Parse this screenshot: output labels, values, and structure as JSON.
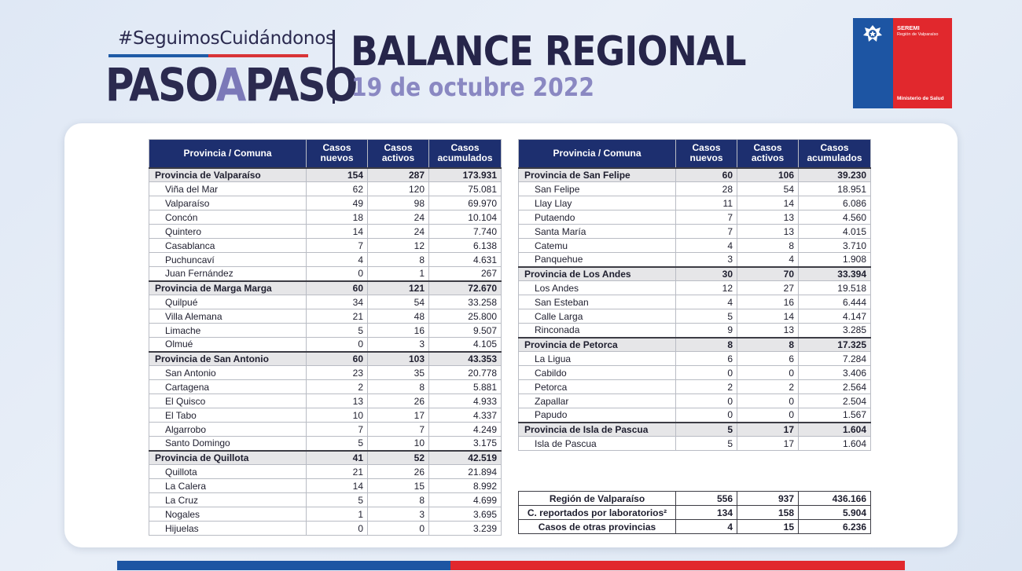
{
  "header": {
    "hashtag": "#SeguimosCuidándonos",
    "paso1": "PASO",
    "paso_a": "A",
    "paso2": "PASO",
    "title": "BALANCE REGIONAL",
    "date": "19 de octubre 2022"
  },
  "logo": {
    "seremi": "SEREMI",
    "region": "Región de Valparaíso",
    "ministerio": "Ministerio de Salud"
  },
  "columns": [
    "Provincia / Comuna",
    "Casos nuevos",
    "Casos activos",
    "Casos acumulados"
  ],
  "left_table": [
    {
      "type": "prov",
      "name": "Provincia de Valparaíso",
      "nuevos": "154",
      "activos": "287",
      "acumulados": "173.931"
    },
    {
      "type": "com",
      "name": "Viña del Mar",
      "nuevos": "62",
      "activos": "120",
      "acumulados": "75.081"
    },
    {
      "type": "com",
      "name": "Valparaíso",
      "nuevos": "49",
      "activos": "98",
      "acumulados": "69.970"
    },
    {
      "type": "com",
      "name": "Concón",
      "nuevos": "18",
      "activos": "24",
      "acumulados": "10.104"
    },
    {
      "type": "com",
      "name": "Quintero",
      "nuevos": "14",
      "activos": "24",
      "acumulados": "7.740"
    },
    {
      "type": "com",
      "name": "Casablanca",
      "nuevos": "7",
      "activos": "12",
      "acumulados": "6.138"
    },
    {
      "type": "com",
      "name": "Puchuncaví",
      "nuevos": "4",
      "activos": "8",
      "acumulados": "4.631"
    },
    {
      "type": "com",
      "name": "Juan Fernández",
      "nuevos": "0",
      "activos": "1",
      "acumulados": "267"
    },
    {
      "type": "prov",
      "name": "Provincia de Marga Marga",
      "nuevos": "60",
      "activos": "121",
      "acumulados": "72.670"
    },
    {
      "type": "com",
      "name": "Quilpué",
      "nuevos": "34",
      "activos": "54",
      "acumulados": "33.258"
    },
    {
      "type": "com",
      "name": "Villa Alemana",
      "nuevos": "21",
      "activos": "48",
      "acumulados": "25.800"
    },
    {
      "type": "com",
      "name": "Limache",
      "nuevos": "5",
      "activos": "16",
      "acumulados": "9.507"
    },
    {
      "type": "com",
      "name": "Olmué",
      "nuevos": "0",
      "activos": "3",
      "acumulados": "4.105"
    },
    {
      "type": "prov",
      "name": "Provincia de San Antonio",
      "nuevos": "60",
      "activos": "103",
      "acumulados": "43.353"
    },
    {
      "type": "com",
      "name": "San Antonio",
      "nuevos": "23",
      "activos": "35",
      "acumulados": "20.778"
    },
    {
      "type": "com",
      "name": "Cartagena",
      "nuevos": "2",
      "activos": "8",
      "acumulados": "5.881"
    },
    {
      "type": "com",
      "name": "El Quisco",
      "nuevos": "13",
      "activos": "26",
      "acumulados": "4.933"
    },
    {
      "type": "com",
      "name": "El Tabo",
      "nuevos": "10",
      "activos": "17",
      "acumulados": "4.337"
    },
    {
      "type": "com",
      "name": "Algarrobo",
      "nuevos": "7",
      "activos": "7",
      "acumulados": "4.249"
    },
    {
      "type": "com",
      "name": "Santo Domingo",
      "nuevos": "5",
      "activos": "10",
      "acumulados": "3.175"
    },
    {
      "type": "prov",
      "name": "Provincia de Quillota",
      "nuevos": "41",
      "activos": "52",
      "acumulados": "42.519"
    },
    {
      "type": "com",
      "name": "Quillota",
      "nuevos": "21",
      "activos": "26",
      "acumulados": "21.894"
    },
    {
      "type": "com",
      "name": "La Calera",
      "nuevos": "14",
      "activos": "15",
      "acumulados": "8.992"
    },
    {
      "type": "com",
      "name": "La Cruz",
      "nuevos": "5",
      "activos": "8",
      "acumulados": "4.699"
    },
    {
      "type": "com",
      "name": "Nogales",
      "nuevos": "1",
      "activos": "3",
      "acumulados": "3.695"
    },
    {
      "type": "com",
      "name": "Hijuelas",
      "nuevos": "0",
      "activos": "0",
      "acumulados": "3.239"
    }
  ],
  "right_table": [
    {
      "type": "prov",
      "name": "Provincia de San Felipe",
      "nuevos": "60",
      "activos": "106",
      "acumulados": "39.230"
    },
    {
      "type": "com",
      "name": "San Felipe",
      "nuevos": "28",
      "activos": "54",
      "acumulados": "18.951"
    },
    {
      "type": "com",
      "name": "Llay Llay",
      "nuevos": "11",
      "activos": "14",
      "acumulados": "6.086"
    },
    {
      "type": "com",
      "name": "Putaendo",
      "nuevos": "7",
      "activos": "13",
      "acumulados": "4.560"
    },
    {
      "type": "com",
      "name": "Santa María",
      "nuevos": "7",
      "activos": "13",
      "acumulados": "4.015"
    },
    {
      "type": "com",
      "name": "Catemu",
      "nuevos": "4",
      "activos": "8",
      "acumulados": "3.710"
    },
    {
      "type": "com",
      "name": "Panquehue",
      "nuevos": "3",
      "activos": "4",
      "acumulados": "1.908"
    },
    {
      "type": "prov",
      "name": "Provincia de Los Andes",
      "nuevos": "30",
      "activos": "70",
      "acumulados": "33.394"
    },
    {
      "type": "com",
      "name": "Los Andes",
      "nuevos": "12",
      "activos": "27",
      "acumulados": "19.518"
    },
    {
      "type": "com",
      "name": "San Esteban",
      "nuevos": "4",
      "activos": "16",
      "acumulados": "6.444"
    },
    {
      "type": "com",
      "name": "Calle Larga",
      "nuevos": "5",
      "activos": "14",
      "acumulados": "4.147"
    },
    {
      "type": "com",
      "name": "Rinconada",
      "nuevos": "9",
      "activos": "13",
      "acumulados": "3.285"
    },
    {
      "type": "prov",
      "name": "Provincia de Petorca",
      "nuevos": "8",
      "activos": "8",
      "acumulados": "17.325"
    },
    {
      "type": "com",
      "name": "La Ligua",
      "nuevos": "6",
      "activos": "6",
      "acumulados": "7.284"
    },
    {
      "type": "com",
      "name": "Cabildo",
      "nuevos": "0",
      "activos": "0",
      "acumulados": "3.406"
    },
    {
      "type": "com",
      "name": "Petorca",
      "nuevos": "2",
      "activos": "2",
      "acumulados": "2.564"
    },
    {
      "type": "com",
      "name": "Zapallar",
      "nuevos": "0",
      "activos": "0",
      "acumulados": "2.504"
    },
    {
      "type": "com",
      "name": "Papudo",
      "nuevos": "0",
      "activos": "0",
      "acumulados": "1.567"
    },
    {
      "type": "prov",
      "name": "Provincia de Isla de Pascua",
      "nuevos": "5",
      "activos": "17",
      "acumulados": "1.604"
    },
    {
      "type": "com",
      "name": "Isla de Pascua",
      "nuevos": "5",
      "activos": "17",
      "acumulados": "1.604"
    }
  ],
  "totals": [
    {
      "name": "Región de Valparaíso",
      "nuevos": "556",
      "activos": "937",
      "acumulados": "436.166"
    },
    {
      "name": "C. reportados por laboratorios²",
      "nuevos": "134",
      "activos": "158",
      "acumulados": "5.904"
    },
    {
      "name": "Casos de otras provincias",
      "nuevos": "4",
      "activos": "15",
      "acumulados": "6.236"
    }
  ],
  "colors": {
    "navy": "#1d2f6f",
    "blue": "#1d55a3",
    "red": "#e1282d",
    "accent": "#8a88c2"
  }
}
